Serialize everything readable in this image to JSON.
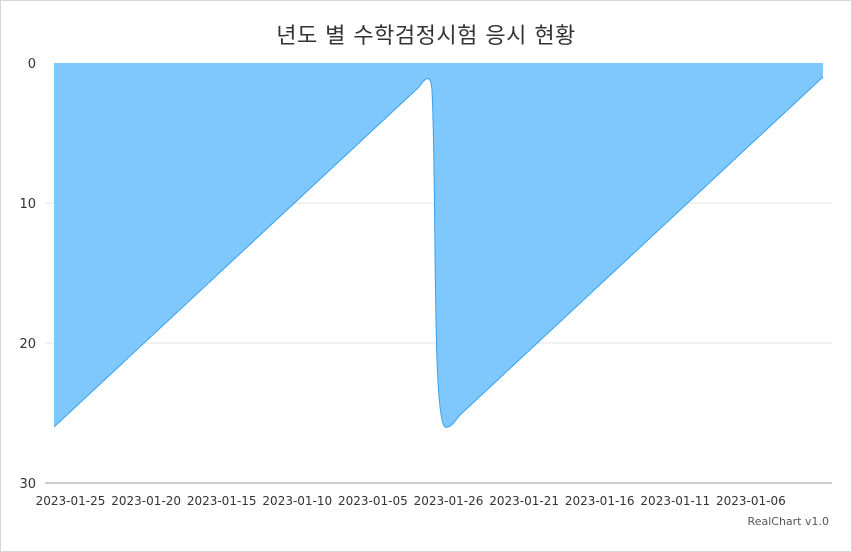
{
  "chart_data": {
    "type": "area",
    "title": "년도 별 수학검정시험 응시 현황",
    "xlabel": "",
    "ylabel": "",
    "ylim": [
      0,
      30
    ],
    "yreversed": true,
    "y_ticks": [
      0,
      10,
      20,
      30
    ],
    "x_tick_labels": [
      "2023-01-25",
      "2023-01-20",
      "2023-01-15",
      "2023-01-10",
      "2023-01-05",
      "2023-01-26",
      "2023-01-21",
      "2023-01-16",
      "2023-01-11",
      "2023-01-06"
    ],
    "grid": true,
    "legend": "none",
    "series": [
      {
        "color": "#7ec8fd",
        "line_color": "#3aa0ee",
        "points": [
          {
            "x": "2023-01-26",
            "y": 26
          },
          {
            "x": "2023-01-01",
            "y": 1
          },
          {
            "x": "2023-01-26",
            "y": 26
          },
          {
            "x": "2023-01-01",
            "y": 1
          }
        ]
      }
    ]
  },
  "credits": "RealChart v1.0"
}
